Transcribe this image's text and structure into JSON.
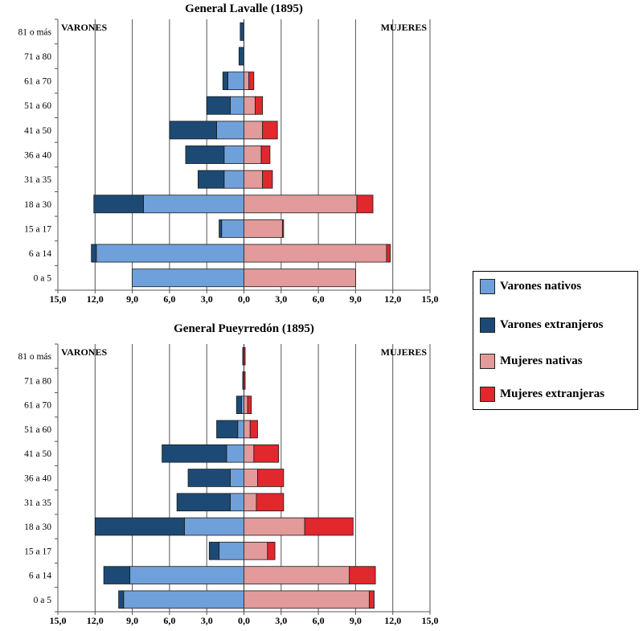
{
  "colors": {
    "varones_nativos": "#6fa0da",
    "varones_extranjeros": "#1c4a75",
    "mujeres_nativas": "#e29a9a",
    "mujeres_extranjeras": "#e0282d"
  },
  "legend": {
    "items": [
      {
        "label": "Varones nativos",
        "color_key": "varones_nativos"
      },
      {
        "label": "Varones extranjeros",
        "color_key": "varones_extranjeros"
      },
      {
        "label": "Mujeres nativas",
        "color_key": "mujeres_nativas"
      },
      {
        "label": "Mujeres extranjeras",
        "color_key": "mujeres_extranjeras"
      }
    ]
  },
  "chart_data": [
    {
      "type": "bar",
      "subtype": "population-pyramid",
      "title": "General Lavalle (1895)",
      "left_label": "VARONES",
      "right_label": "MUJERES",
      "categories": [
        "81 o más",
        "71 a 80",
        "61 a 70",
        "51 a 60",
        "41 a 50",
        "36 a 40",
        "31 a 35",
        "18 a 30",
        "15 a 17",
        "6 a 14",
        "0 a 5"
      ],
      "xticks": [
        "15,0",
        "12,0",
        "9,0",
        "6,0",
        "3,0",
        "0,0",
        "3,0",
        "6,0",
        "9,0",
        "12,0",
        "15,0"
      ],
      "xlim": [
        -15,
        15
      ],
      "grid": true,
      "series": [
        {
          "name": "Varones nativos",
          "side": "left",
          "values": [
            0.0,
            0.0,
            1.3,
            1.1,
            2.2,
            1.6,
            1.6,
            8.1,
            1.8,
            11.9,
            9.0
          ]
        },
        {
          "name": "Varones extranjeros",
          "side": "left",
          "values": [
            0.3,
            0.4,
            0.4,
            1.9,
            3.8,
            3.1,
            2.1,
            4.0,
            0.2,
            0.4,
            0.0
          ]
        },
        {
          "name": "Mujeres nativas",
          "side": "right",
          "values": [
            0.0,
            0.0,
            0.4,
            0.9,
            1.5,
            1.4,
            1.5,
            9.1,
            3.1,
            11.5,
            9.0
          ]
        },
        {
          "name": "Mujeres extranjeras",
          "side": "right",
          "values": [
            0.0,
            0.0,
            0.4,
            0.6,
            1.2,
            0.7,
            0.8,
            1.3,
            0.1,
            0.3,
            0.0
          ]
        }
      ]
    },
    {
      "type": "bar",
      "subtype": "population-pyramid",
      "title": "General Pueyrredón (1895)",
      "left_label": "VARONES",
      "right_label": "MUJERES",
      "categories": [
        "81 o más",
        "71 a 80",
        "61 a 70",
        "51 a 60",
        "41 a 50",
        "36 a 40",
        "31 a 35",
        "18 a 30",
        "15 a 17",
        "6 a 14",
        "0 a 5"
      ],
      "xticks": [
        "15,0",
        "12,0",
        "9,0",
        "6,0",
        "3,0",
        "0,0",
        "3,0",
        "6,0",
        "9,0",
        "12,0",
        "15,0"
      ],
      "xlim": [
        -15,
        15
      ],
      "grid": true,
      "series": [
        {
          "name": "Varones nativos",
          "side": "left",
          "values": [
            0.0,
            0.0,
            0.2,
            0.5,
            1.4,
            1.1,
            1.1,
            4.8,
            2.0,
            9.2,
            9.7
          ]
        },
        {
          "name": "Varones extranjeros",
          "side": "left",
          "values": [
            0.1,
            0.1,
            0.4,
            1.7,
            5.2,
            3.4,
            4.3,
            7.2,
            0.8,
            2.1,
            0.4
          ]
        },
        {
          "name": "Mujeres nativas",
          "side": "right",
          "values": [
            0.0,
            0.0,
            0.3,
            0.5,
            0.8,
            1.1,
            1.0,
            4.9,
            1.9,
            8.5,
            10.1
          ]
        },
        {
          "name": "Mujeres extranjeras",
          "side": "right",
          "values": [
            0.1,
            0.1,
            0.3,
            0.6,
            2.0,
            2.1,
            2.2,
            3.9,
            0.6,
            2.1,
            0.4
          ]
        }
      ]
    }
  ]
}
